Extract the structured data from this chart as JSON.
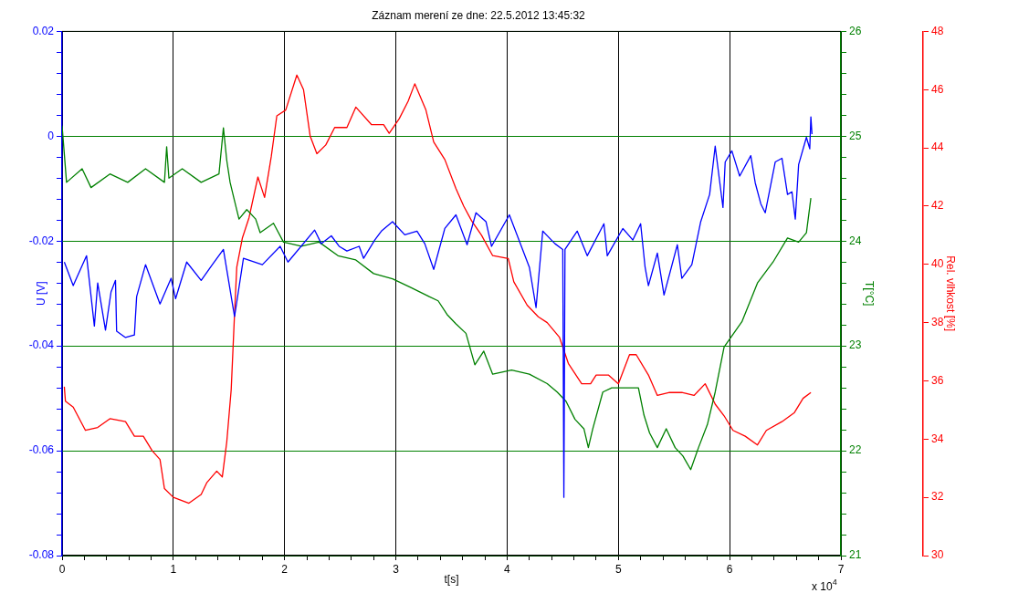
{
  "chart_data": {
    "type": "line",
    "title": "Záznam merení ze dne: 22.5.2012 13:45:32",
    "xlabel": "t[s]",
    "ylabel": "U [V]",
    "y2label": "T[°C]",
    "y3label": "Rel. vlhkost [%]",
    "annotations": [
      "x 10$^{4}$"
    ],
    "grid": true,
    "legend": false,
    "line_style": "solid",
    "xlim": [
      0,
      7
    ],
    "xticks": [
      0,
      {
        "value": 0.2,
        "label": null
      },
      {
        "value": 0.4,
        "label": null
      },
      {
        "value": 0.6,
        "label": null
      },
      {
        "value": 0.8,
        "label": null
      },
      1,
      {
        "value": 1.2,
        "label": null
      },
      {
        "value": 1.4,
        "label": null
      },
      {
        "value": 1.6,
        "label": null
      },
      {
        "value": 1.8,
        "label": null
      },
      2,
      {
        "value": 2.2,
        "label": null
      },
      {
        "value": 2.4,
        "label": null
      },
      {
        "value": 2.6,
        "label": null
      },
      {
        "value": 2.8,
        "label": null
      },
      3,
      {
        "value": 3.2,
        "label": null
      },
      {
        "value": 3.4,
        "label": null
      },
      {
        "value": 3.6,
        "label": null
      },
      {
        "value": 3.8,
        "label": null
      },
      4,
      {
        "value": 4.2,
        "label": null
      },
      {
        "value": 4.4,
        "label": null
      },
      {
        "value": 4.6,
        "label": null
      },
      {
        "value": 4.8,
        "label": null
      },
      5,
      {
        "value": 5.2,
        "label": null
      },
      {
        "value": 5.4,
        "label": null
      },
      {
        "value": 5.6,
        "label": null
      },
      {
        "value": 5.8,
        "label": null
      },
      6,
      {
        "value": 6.2,
        "label": null
      },
      {
        "value": 6.4,
        "label": null
      },
      {
        "value": 6.6,
        "label": null
      },
      {
        "value": 6.8,
        "label": null
      },
      7
    ],
    "ylim": [
      -0.08,
      0.02
    ],
    "yticks": [
      -0.08,
      {
        "value": -0.076,
        "label": null
      },
      {
        "value": -0.072,
        "label": null
      },
      {
        "value": -0.068,
        "label": null
      },
      {
        "value": -0.064,
        "label": null
      },
      -0.06,
      {
        "value": -0.056,
        "label": null
      },
      {
        "value": -0.052,
        "label": null
      },
      {
        "value": -0.048,
        "label": null
      },
      {
        "value": -0.044,
        "label": null
      },
      -0.04,
      {
        "value": -0.036,
        "label": null
      },
      {
        "value": -0.032,
        "label": null
      },
      {
        "value": -0.028,
        "label": null
      },
      {
        "value": -0.024,
        "label": null
      },
      -0.02,
      {
        "value": -0.016,
        "label": null
      },
      {
        "value": -0.012,
        "label": null
      },
      {
        "value": -0.008,
        "label": null
      },
      {
        "value": -0.004,
        "label": null
      },
      0,
      {
        "value": 0.004,
        "label": null
      },
      {
        "value": 0.008,
        "label": null
      },
      {
        "value": 0.012,
        "label": null
      },
      {
        "value": 0.016,
        "label": null
      },
      0.02
    ],
    "y2lim": [
      21,
      26
    ],
    "y2ticks": [
      21,
      {
        "value": 21.2,
        "label": null
      },
      {
        "value": 21.4,
        "label": null
      },
      {
        "value": 21.6,
        "label": null
      },
      {
        "value": 21.8,
        "label": null
      },
      22,
      {
        "value": 22.2,
        "label": null
      },
      {
        "value": 22.4,
        "label": null
      },
      {
        "value": 22.6,
        "label": null
      },
      {
        "value": 22.8,
        "label": null
      },
      23,
      {
        "value": 23.2,
        "label": null
      },
      {
        "value": 23.4,
        "label": null
      },
      {
        "value": 23.6,
        "label": null
      },
      {
        "value": 23.8,
        "label": null
      },
      24,
      {
        "value": 24.2,
        "label": null
      },
      {
        "value": 24.4,
        "label": null
      },
      {
        "value": 24.6,
        "label": null
      },
      {
        "value": 24.8,
        "label": null
      },
      25,
      {
        "value": 25.2,
        "label": null
      },
      {
        "value": 25.4,
        "label": null
      },
      {
        "value": 25.6,
        "label": null
      },
      {
        "value": 25.8,
        "label": null
      },
      26
    ],
    "y3lim": [
      30,
      48
    ],
    "y3ticks": [
      30,
      32,
      34,
      36,
      38,
      40,
      42,
      44,
      46,
      48
    ],
    "series": [
      {
        "color": "#0000ff",
        "x": [
          0.02,
          0.1,
          0.22,
          0.29,
          0.32,
          0.39,
          0.44,
          0.48,
          0.49,
          0.57,
          0.65,
          0.67,
          0.75,
          0.88,
          0.98,
          1.02,
          1.12,
          1.25,
          1.35,
          1.45,
          1.55,
          1.63,
          1.8,
          1.96,
          2.03,
          2.27,
          2.33,
          2.42,
          2.49,
          2.56,
          2.67,
          2.71,
          2.81,
          2.87,
          2.97,
          3.08,
          3.19,
          3.26,
          3.34,
          3.44,
          3.54,
          3.64,
          3.72,
          3.81,
          3.86,
          4.02,
          4.2,
          4.26,
          4.32,
          4.43,
          4.5,
          4.51,
          4.52,
          4.63,
          4.72,
          4.87,
          4.9,
          5.04,
          5.13,
          5.2,
          5.24,
          5.27,
          5.35,
          5.41,
          5.53,
          5.57,
          5.66,
          5.74,
          5.82,
          5.87,
          5.94,
          5.96,
          6.02,
          6.09,
          6.19,
          6.23,
          6.28,
          6.32,
          6.41,
          6.47,
          6.52,
          6.56,
          6.59,
          6.62,
          6.69,
          6.72,
          6.73,
          6.74
        ],
        "values": [
          -0.024,
          -0.0285,
          -0.0228,
          -0.0362,
          -0.028,
          -0.037,
          -0.0297,
          -0.0275,
          -0.0372,
          -0.0384,
          -0.0379,
          -0.0306,
          -0.0245,
          -0.032,
          -0.0271,
          -0.031,
          -0.024,
          -0.0275,
          -0.0245,
          -0.0216,
          -0.0344,
          -0.0233,
          -0.0245,
          -0.021,
          -0.024,
          -0.0179,
          -0.0205,
          -0.019,
          -0.021,
          -0.0219,
          -0.021,
          -0.0233,
          -0.0198,
          -0.0181,
          -0.0163,
          -0.0188,
          -0.0181,
          -0.0205,
          -0.0254,
          -0.0176,
          -0.015,
          -0.0207,
          -0.0146,
          -0.0163,
          -0.021,
          -0.015,
          -0.025,
          -0.0327,
          -0.0181,
          -0.0205,
          -0.0216,
          -0.0689,
          -0.0216,
          -0.0181,
          -0.0228,
          -0.0167,
          -0.0228,
          -0.0176,
          -0.0198,
          -0.0167,
          -0.025,
          -0.0285,
          -0.0223,
          -0.0303,
          -0.0207,
          -0.0271,
          -0.0245,
          -0.0163,
          -0.0111,
          -0.0019,
          -0.0136,
          -0.0049,
          -0.0028,
          -0.0076,
          -0.0037,
          -0.0089,
          -0.0129,
          -0.0146,
          -0.0049,
          -0.0042,
          -0.0111,
          -0.0106,
          -0.0158,
          -0.0054,
          -0.0002,
          -0.0024,
          0.0037,
          0.0004
        ]
      },
      {
        "color": "#008000",
        "axis": "y2",
        "x": [
          0,
          0.04,
          0.18,
          0.26,
          0.43,
          0.59,
          0.75,
          0.92,
          0.94,
          0.96,
          1.08,
          1.25,
          1.41,
          1.45,
          1.48,
          1.51,
          1.56,
          1.59,
          1.66,
          1.74,
          1.78,
          1.9,
          1.99,
          2.15,
          2.31,
          2.48,
          2.64,
          2.8,
          2.97,
          3.13,
          3.3,
          3.38,
          3.46,
          3.54,
          3.63,
          3.71,
          3.79,
          3.87,
          4.04,
          4.2,
          4.36,
          4.45,
          4.53,
          4.61,
          4.69,
          4.73,
          4.77,
          4.86,
          4.94,
          5.18,
          5.23,
          5.28,
          5.35,
          5.43,
          5.51,
          5.58,
          5.65,
          5.72,
          5.8,
          5.87,
          5.95,
          6.11,
          6.25,
          6.39,
          6.52,
          6.62,
          6.69,
          6.73
        ],
        "values": [
          25.1,
          24.56,
          24.69,
          24.51,
          24.64,
          24.56,
          24.69,
          24.56,
          24.9,
          24.6,
          24.69,
          24.56,
          24.64,
          25.08,
          24.77,
          24.56,
          24.34,
          24.21,
          24.3,
          24.21,
          24.08,
          24.17,
          23.99,
          23.95,
          23.99,
          23.86,
          23.82,
          23.69,
          23.64,
          23.56,
          23.47,
          23.43,
          23.3,
          23.21,
          23.12,
          22.82,
          22.95,
          22.73,
          22.77,
          22.73,
          22.64,
          22.56,
          22.47,
          22.3,
          22.21,
          22.03,
          22.21,
          22.56,
          22.6,
          22.6,
          22.34,
          22.17,
          22.03,
          22.21,
          22.03,
          21.95,
          21.82,
          22.03,
          22.25,
          22.56,
          22.99,
          23.23,
          23.6,
          23.8,
          24.03,
          23.99,
          24.08,
          24.41
        ]
      },
      {
        "color": "#ff0000",
        "axis": "y3",
        "x": [
          0.02,
          0.03,
          0.1,
          0.21,
          0.32,
          0.43,
          0.57,
          0.65,
          0.73,
          0.81,
          0.88,
          0.92,
          1.0,
          1.14,
          1.25,
          1.3,
          1.39,
          1.44,
          1.48,
          1.52,
          1.55,
          1.57,
          1.62,
          1.68,
          1.76,
          1.82,
          1.88,
          1.93,
          2.01,
          2.11,
          2.17,
          2.23,
          2.29,
          2.37,
          2.45,
          2.56,
          2.64,
          2.78,
          2.89,
          2.94,
          3.03,
          3.11,
          3.17,
          3.27,
          3.34,
          3.44,
          3.54,
          3.61,
          3.68,
          3.77,
          3.87,
          4.01,
          4.06,
          4.18,
          4.28,
          4.36,
          4.47,
          4.55,
          4.67,
          4.75,
          4.8,
          4.91,
          5.0,
          5.1,
          5.16,
          5.27,
          5.35,
          5.46,
          5.57,
          5.68,
          5.78,
          5.87,
          5.95,
          6.03,
          6.14,
          6.25,
          6.33,
          6.47,
          6.58,
          6.66,
          6.73
        ],
        "values": [
          35.8,
          35.3,
          35.1,
          34.3,
          34.4,
          34.7,
          34.6,
          34.1,
          34.1,
          33.6,
          33.3,
          32.3,
          32.0,
          31.8,
          32.1,
          32.5,
          32.9,
          32.7,
          33.9,
          35.7,
          38.3,
          39.9,
          40.9,
          41.6,
          43.0,
          42.3,
          43.7,
          45.1,
          45.3,
          46.5,
          46.0,
          44.4,
          43.8,
          44.1,
          44.7,
          44.7,
          45.4,
          44.8,
          44.8,
          44.5,
          45.0,
          45.6,
          46.2,
          45.3,
          44.2,
          43.6,
          42.6,
          42.0,
          41.5,
          41.0,
          40.3,
          40.2,
          39.4,
          38.6,
          38.2,
          38.0,
          37.5,
          36.6,
          35.9,
          35.9,
          36.2,
          36.2,
          35.9,
          36.9,
          36.9,
          36.2,
          35.5,
          35.6,
          35.6,
          35.5,
          35.9,
          35.2,
          34.8,
          34.3,
          34.1,
          33.8,
          34.3,
          34.6,
          34.9,
          35.4,
          35.6
        ]
      }
    ]
  }
}
